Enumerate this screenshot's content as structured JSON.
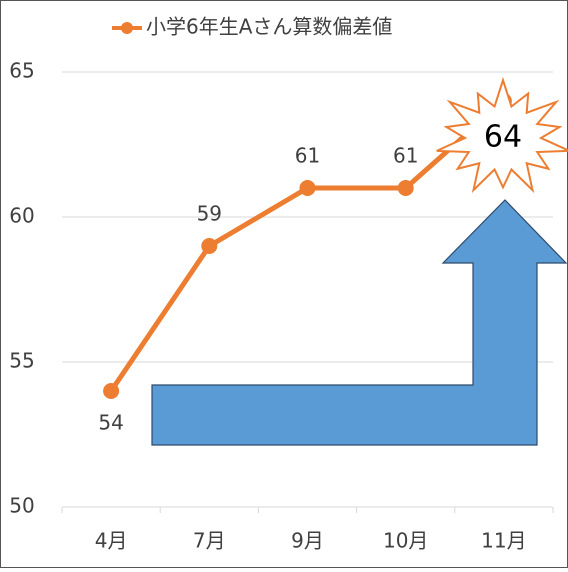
{
  "chart_data": {
    "type": "line",
    "title": null,
    "categories": [
      "4月",
      "7月",
      "9月",
      "10月",
      "11月"
    ],
    "series": [
      {
        "name": "小学6年生Aさん算数偏差値",
        "color": "#ed7d31",
        "values": [
          54,
          59,
          61,
          61,
          64
        ]
      }
    ],
    "ylim": [
      50,
      65
    ],
    "yticks": [
      50,
      55,
      60,
      65
    ],
    "grid": true
  }
}
